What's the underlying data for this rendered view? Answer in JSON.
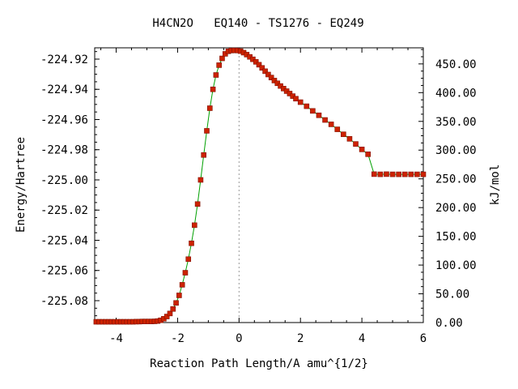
{
  "chart_data": {
    "type": "line",
    "title": "H4CN2O   EQ140 - TS1276 - EQ249",
    "xlabel": "Reaction Path Length/A amu^{1/2}",
    "ylabel": "Energy/Hartree",
    "y2label": "kJ/mol",
    "xlim": [
      -4.7,
      6.0
    ],
    "ylim": [
      -225.0945,
      -224.9125
    ],
    "y2lim": [
      0.0,
      478.0
    ],
    "x_ticks": [
      -4,
      -2,
      0,
      2,
      4,
      6
    ],
    "x_tick_labels": [
      "-4",
      "-2",
      "0",
      "2",
      "4",
      "6"
    ],
    "y_ticks": [
      -224.92,
      -224.94,
      -224.96,
      -224.98,
      -225.0,
      -225.02,
      -225.04,
      -225.06,
      -225.08
    ],
    "y_tick_labels": [
      "-224.92",
      "-224.94",
      "-224.96",
      "-224.98",
      "-225.00",
      "-225.02",
      "-225.04",
      "-225.06",
      "-225.08"
    ],
    "y2_ticks": [
      0,
      50,
      100,
      150,
      200,
      250,
      300,
      350,
      400,
      450
    ],
    "y2_tick_labels": [
      "0.00",
      "50.00",
      "100.00",
      "150.00",
      "200.00",
      "250.00",
      "300.00",
      "350.00",
      "400.00",
      "450.00"
    ],
    "ts_marker_x": 0.0,
    "grid": false,
    "line_color": "#00a000",
    "marker_color": "#cc2200",
    "series": [
      {
        "x": [
          -4.65,
          -4.55,
          -4.45,
          -4.35,
          -4.25,
          -4.15,
          -4.05,
          -3.95,
          -3.85,
          -3.75,
          -3.65,
          -3.55,
          -3.45,
          -3.35,
          -3.25,
          -3.15,
          -3.05,
          -2.95,
          -2.85,
          -2.75,
          -2.65,
          -2.55,
          -2.45,
          -2.35,
          -2.25,
          -2.15,
          -2.05,
          -1.95,
          -1.85,
          -1.75,
          -1.65,
          -1.55,
          -1.45,
          -1.35,
          -1.25,
          -1.15,
          -1.05,
          -0.95,
          -0.85,
          -0.75,
          -0.65,
          -0.55,
          -0.45,
          -0.35,
          -0.25,
          -0.15,
          -0.05,
          0.05,
          0.15,
          0.25,
          0.35,
          0.45,
          0.55,
          0.65,
          0.75,
          0.85,
          0.95,
          1.05,
          1.15,
          1.25,
          1.35,
          1.45,
          1.55,
          1.65,
          1.75,
          1.85,
          2.0,
          2.2,
          2.4,
          2.6,
          2.8,
          3.0,
          3.2,
          3.4,
          3.6,
          3.8,
          4.0,
          4.2,
          4.4,
          4.6,
          4.8,
          5.0,
          5.2,
          5.4,
          5.6,
          5.8,
          6.0
        ],
        "y": [
          -225.094,
          -225.094,
          -225.094,
          -225.094,
          -225.094,
          -225.094,
          -225.094,
          -225.094,
          -225.094,
          -225.094,
          -225.094,
          -225.094,
          -225.094,
          -225.0939,
          -225.0939,
          -225.0938,
          -225.0938,
          -225.0938,
          -225.0938,
          -225.0937,
          -225.0935,
          -225.093,
          -225.092,
          -225.0905,
          -225.0885,
          -225.0855,
          -225.0815,
          -225.0765,
          -225.0695,
          -225.0615,
          -225.0525,
          -225.042,
          -225.03,
          -225.016,
          -225.0,
          -224.9835,
          -224.9675,
          -224.9525,
          -224.94,
          -224.9305,
          -224.924,
          -224.9195,
          -224.9165,
          -224.9148,
          -224.9143,
          -224.9142,
          -224.9143,
          -224.9147,
          -224.9157,
          -224.917,
          -224.9185,
          -224.9201,
          -224.9218,
          -224.9237,
          -224.9258,
          -224.928,
          -224.9302,
          -224.9322,
          -224.9342,
          -224.936,
          -224.9378,
          -224.9395,
          -224.9412,
          -224.9428,
          -224.9445,
          -224.9462,
          -224.9485,
          -224.9512,
          -224.9543,
          -224.9572,
          -224.9603,
          -224.9632,
          -224.9665,
          -224.9698,
          -224.9728,
          -224.9762,
          -224.9798,
          -224.983,
          -224.9962,
          -224.9963,
          -224.9962,
          -224.9963,
          -224.9963,
          -224.9963,
          -224.9963,
          -224.9963,
          -224.9963
        ]
      }
    ]
  }
}
